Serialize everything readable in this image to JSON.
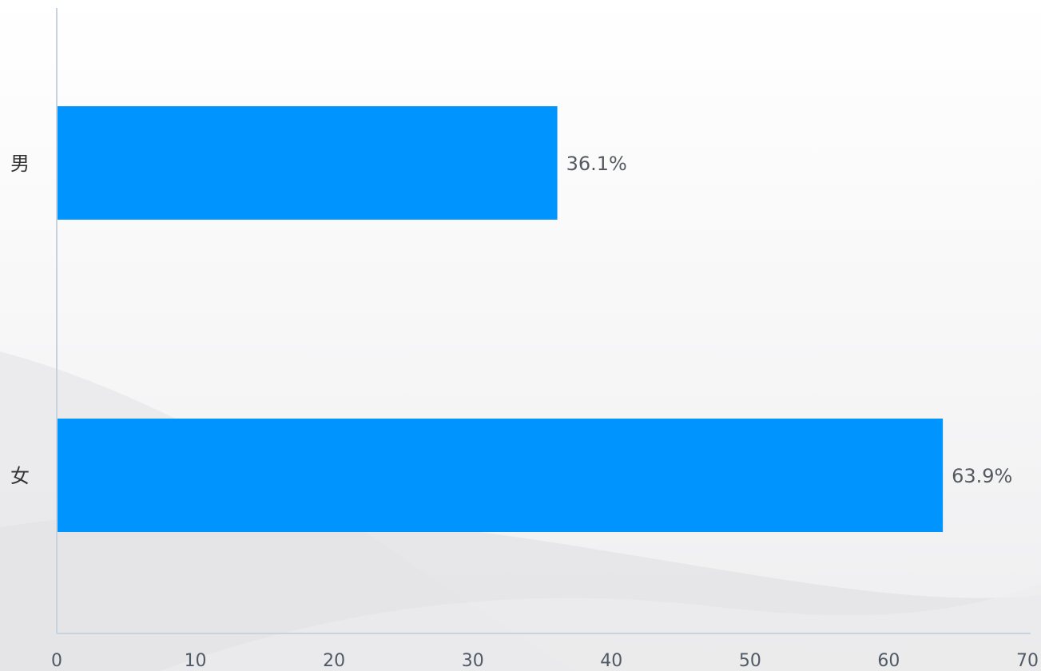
{
  "chart_data": {
    "type": "bar",
    "orientation": "horizontal",
    "categories": [
      "男",
      "女"
    ],
    "values": [
      36.1,
      63.9
    ],
    "data_labels": [
      "36.1%",
      "63.9%"
    ],
    "xlim": [
      0,
      70
    ],
    "xticks": [
      0,
      10,
      20,
      30,
      40,
      50,
      60,
      70
    ],
    "xtick_labels": [
      "0",
      "10",
      "20",
      "30",
      "40",
      "50",
      "60",
      "70"
    ],
    "title": "",
    "xlabel": "",
    "ylabel": "",
    "grid": false,
    "legend": "none"
  },
  "colors": {
    "bar": "#0094ff",
    "axis": "#c8d3e0"
  }
}
